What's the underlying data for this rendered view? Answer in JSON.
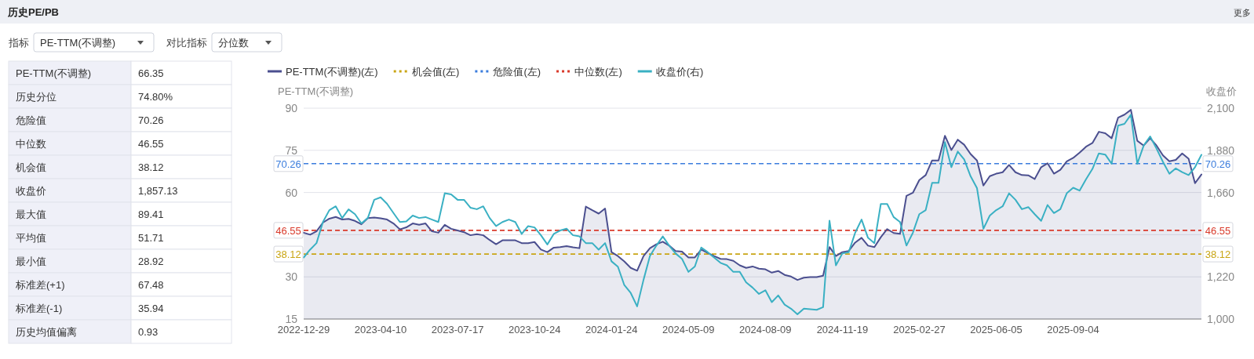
{
  "chart_data": [
    {
      "type": "other",
      "title": "历史PE/PB",
      "categories": [
        "PE-TTM(不调整)",
        "历史分位",
        "危险值",
        "中位数",
        "机会值",
        "收盘价",
        "最大值",
        "平均值",
        "最小值",
        "标准差(+1)",
        "标准差(-1)",
        "历史均值偏离"
      ],
      "value_labels": [
        "66.35",
        "74.80%",
        "70.26",
        "46.55",
        "38.12",
        "1,857.13",
        "89.41",
        "51.71",
        "28.92",
        "67.48",
        "35.94",
        "0.93"
      ],
      "annotations": [
        "更多",
        "指标",
        "PE-TTM(不调整)",
        "对比指标",
        "分位数"
      ]
    },
    {
      "type": "line",
      "ylabel": "PE-TTM(不调整)",
      "y2label": "收盘价",
      "categories": [
        "2022-12-29",
        null,
        null,
        null,
        null,
        null,
        null,
        null,
        null,
        null,
        null,
        null,
        "2023-04-10",
        null,
        null,
        null,
        null,
        null,
        null,
        null,
        null,
        null,
        null,
        null,
        "2023-07-17",
        null,
        null,
        null,
        null,
        null,
        null,
        null,
        null,
        null,
        null,
        null,
        "2023-10-24",
        null,
        null,
        null,
        null,
        null,
        null,
        null,
        null,
        null,
        null,
        null,
        "2024-01-24",
        null,
        null,
        null,
        null,
        null,
        null,
        null,
        null,
        null,
        null,
        null,
        "2024-05-09",
        null,
        null,
        null,
        null,
        null,
        null,
        null,
        null,
        null,
        null,
        null,
        "2024-08-09",
        null,
        null,
        null,
        null,
        null,
        null,
        null,
        null,
        null,
        null,
        null,
        "2024-11-19",
        null,
        null,
        null,
        null,
        null,
        null,
        null,
        null,
        null,
        null,
        null,
        "2025-02-27",
        null,
        null,
        null,
        null,
        null,
        null,
        null,
        null,
        null,
        null,
        null,
        "2025-06-05",
        null,
        null,
        null,
        null,
        null,
        null,
        null,
        null,
        null,
        null,
        null,
        "2025-09-04",
        null,
        null,
        null,
        null,
        null,
        null,
        null,
        null,
        null,
        null,
        null,
        null,
        null,
        null,
        null,
        null,
        null,
        null,
        null,
        null
      ],
      "series": [
        {
          "name": "PE-TTM(不调整)(左)",
          "type": "area",
          "color": "#4b4f8f",
          "values": [
            45.7,
            45.0,
            46.2,
            49.3,
            50.7,
            51.3,
            50.4,
            50.6,
            49.9,
            48.7,
            50.9,
            51.1,
            50.8,
            50.4,
            49.0,
            46.9,
            47.6,
            49.0,
            48.5,
            49.0,
            46.2,
            45.7,
            48.5,
            47.1,
            46.5,
            45.9,
            44.8,
            45.2,
            44.8,
            43.1,
            41.6,
            43.0,
            43.0,
            43.0,
            42.0,
            42.0,
            42.4,
            39.7,
            38.8,
            40.4,
            40.6,
            40.9,
            40.5,
            40.2,
            55.0,
            53.7,
            52.5,
            54.3,
            38.8,
            37.4,
            35.5,
            33.2,
            32.2,
            37.4,
            40.2,
            41.6,
            42.5,
            41.1,
            39.2,
            39.0,
            36.9,
            36.9,
            39.7,
            38.5,
            37.4,
            36.4,
            36.3,
            35.7,
            34.1,
            33.2,
            33.7,
            32.9,
            32.7,
            31.5,
            32.1,
            30.7,
            30.1,
            28.9,
            29.7,
            29.9,
            29.9,
            30.4,
            40.6,
            37.4,
            38.8,
            39.2,
            42.2,
            43.9,
            41.1,
            40.6,
            44.1,
            47.0,
            45.6,
            45.3,
            58.8,
            59.9,
            64.4,
            66.2,
            71.4,
            71.4,
            80.2,
            75.1,
            78.8,
            77.0,
            73.7,
            71.4,
            62.5,
            65.8,
            66.7,
            67.2,
            69.8,
            67.2,
            66.2,
            66.1,
            64.8,
            69.0,
            70.4,
            66.7,
            68.1,
            71.1,
            72.3,
            74.2,
            76.3,
            77.6,
            81.6,
            81.1,
            79.3,
            86.6,
            87.7,
            89.4,
            78.4,
            76.7,
            79.3,
            76.7,
            73.2,
            71.1,
            71.6,
            73.9,
            72.0,
            63.3,
            66.4
          ]
        },
        {
          "name": "收盘价(右)",
          "color": "#3ab0c3",
          "axis": "y2",
          "values": [
            1321,
            1362,
            1396,
            1506,
            1568,
            1588,
            1527,
            1572,
            1547,
            1499,
            1527,
            1622,
            1635,
            1601,
            1553,
            1506,
            1509,
            1540,
            1527,
            1532,
            1519,
            1506,
            1656,
            1650,
            1622,
            1622,
            1581,
            1573,
            1588,
            1527,
            1485,
            1506,
            1519,
            1506,
            1444,
            1485,
            1478,
            1437,
            1389,
            1444,
            1462,
            1471,
            1437,
            1431,
            1396,
            1396,
            1362,
            1396,
            1301,
            1273,
            1177,
            1136,
            1066,
            1205,
            1329,
            1383,
            1431,
            1383,
            1342,
            1314,
            1246,
            1274,
            1373,
            1349,
            1321,
            1293,
            1280,
            1246,
            1246,
            1191,
            1164,
            1131,
            1150,
            1088,
            1123,
            1075,
            1054,
            1025,
            1054,
            1051,
            1048,
            1062,
            1513,
            1280,
            1342,
            1349,
            1450,
            1519,
            1424,
            1396,
            1600,
            1600,
            1532,
            1506,
            1383,
            1450,
            1547,
            1568,
            1710,
            1710,
            1923,
            1792,
            1874,
            1833,
            1745,
            1683,
            1471,
            1540,
            1568,
            1588,
            1656,
            1622,
            1573,
            1584,
            1547,
            1512,
            1595,
            1553,
            1573,
            1656,
            1685,
            1670,
            1729,
            1783,
            1864,
            1858,
            1810,
            2009,
            2018,
            2066,
            1810,
            1905,
            1953,
            1889,
            1820,
            1758,
            1786,
            1766,
            1751,
            1792,
            1857
          ]
        }
      ],
      "ylim": [
        15,
        90
      ],
      "yticks": [
        15,
        30,
        {
          "value": 45,
          "label": null
        },
        60,
        75,
        90
      ],
      "y2lim": [
        1000,
        2100
      ],
      "y2ticks": [
        {
          "value": 1000,
          "label": "1,000"
        },
        {
          "value": 1220,
          "label": "1,220"
        },
        {
          "value": 1440,
          "label": null
        },
        {
          "value": 1660,
          "label": "1,660"
        },
        {
          "value": 1880,
          "label": "1,880"
        },
        {
          "value": 2100,
          "label": "2,100"
        }
      ],
      "ref_lines": [
        {
          "axis": "y",
          "value": 38.12,
          "label": "38.12",
          "color": "#c9a514",
          "line_style": "dashed"
        },
        {
          "axis": "y",
          "value": 70.26,
          "label": "70.26",
          "color": "#3b7ddd",
          "line_style": "dashed"
        },
        {
          "axis": "y",
          "value": 46.55,
          "label": "46.55",
          "color": "#d93a2b",
          "line_style": "dashed"
        }
      ],
      "annotations": [
        "机会值(左)",
        "危险值(左)",
        "中位数(左)"
      ],
      "grid": "y",
      "legend": "top"
    }
  ]
}
